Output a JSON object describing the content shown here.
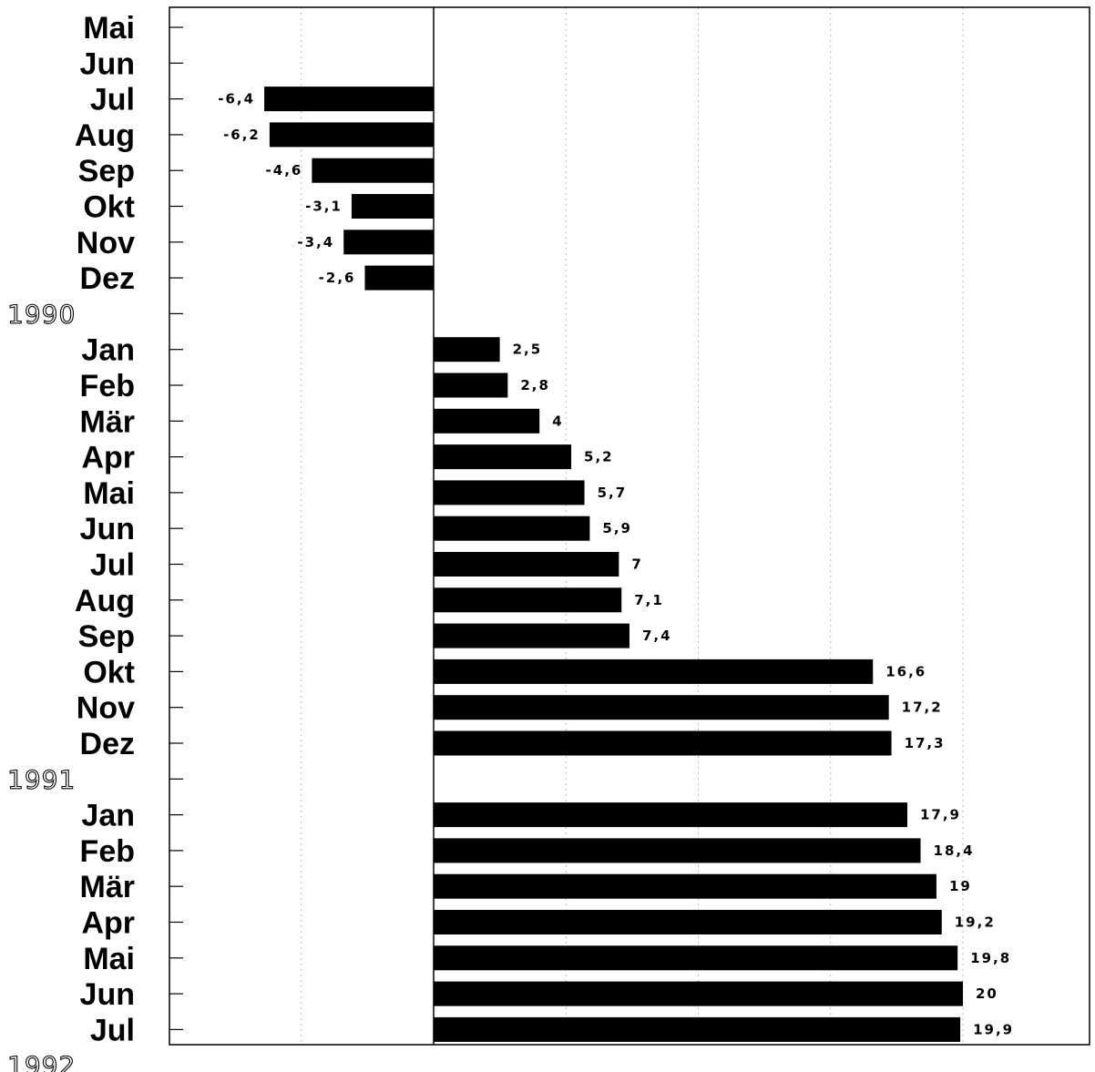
{
  "chart_data": {
    "type": "bar",
    "orientation": "horizontal",
    "rows": [
      {
        "kind": "category",
        "label": "Mai",
        "value": null,
        "value_label": ""
      },
      {
        "kind": "category",
        "label": "Jun",
        "value": null,
        "value_label": ""
      },
      {
        "kind": "category",
        "label": "Jul",
        "value": -6.4,
        "value_label": "-6,4"
      },
      {
        "kind": "category",
        "label": "Aug",
        "value": -6.2,
        "value_label": "-6,2"
      },
      {
        "kind": "category",
        "label": "Sep",
        "value": -4.6,
        "value_label": "-4,6"
      },
      {
        "kind": "category",
        "label": "Okt",
        "value": -3.1,
        "value_label": "-3,1"
      },
      {
        "kind": "category",
        "label": "Nov",
        "value": -3.4,
        "value_label": "-3,4"
      },
      {
        "kind": "category",
        "label": "Dez",
        "value": -2.6,
        "value_label": "-2,6"
      },
      {
        "kind": "year",
        "label": "1990"
      },
      {
        "kind": "category",
        "label": "Jan",
        "value": 2.5,
        "value_label": "2,5"
      },
      {
        "kind": "category",
        "label": "Feb",
        "value": 2.8,
        "value_label": "2,8"
      },
      {
        "kind": "category",
        "label": "Mär",
        "value": 4,
        "value_label": "4"
      },
      {
        "kind": "category",
        "label": "Apr",
        "value": 5.2,
        "value_label": "5,2"
      },
      {
        "kind": "category",
        "label": "Mai",
        "value": 5.7,
        "value_label": "5,7"
      },
      {
        "kind": "category",
        "label": "Jun",
        "value": 5.9,
        "value_label": "5,9"
      },
      {
        "kind": "category",
        "label": "Jul",
        "value": 7,
        "value_label": "7"
      },
      {
        "kind": "category",
        "label": "Aug",
        "value": 7.1,
        "value_label": "7,1"
      },
      {
        "kind": "category",
        "label": "Sep",
        "value": 7.4,
        "value_label": "7,4"
      },
      {
        "kind": "category",
        "label": "Okt",
        "value": 16.6,
        "value_label": "16,6"
      },
      {
        "kind": "category",
        "label": "Nov",
        "value": 17.2,
        "value_label": "17,2"
      },
      {
        "kind": "category",
        "label": "Dez",
        "value": 17.3,
        "value_label": "17,3"
      },
      {
        "kind": "year",
        "label": "1991"
      },
      {
        "kind": "category",
        "label": "Jan",
        "value": 17.9,
        "value_label": "17,9"
      },
      {
        "kind": "category",
        "label": "Feb",
        "value": 18.4,
        "value_label": "18,4"
      },
      {
        "kind": "category",
        "label": "Mär",
        "value": 19,
        "value_label": "19"
      },
      {
        "kind": "category",
        "label": "Apr",
        "value": 19.2,
        "value_label": "19,2"
      },
      {
        "kind": "category",
        "label": "Mai",
        "value": 19.8,
        "value_label": "19,8"
      },
      {
        "kind": "category",
        "label": "Jun",
        "value": 20,
        "value_label": "20"
      },
      {
        "kind": "category",
        "label": "Jul",
        "value": 19.9,
        "value_label": "19,9"
      },
      {
        "kind": "year",
        "label": "1992"
      }
    ],
    "xlim": [
      -10,
      25
    ],
    "x_gridlines": [
      -5,
      0,
      5,
      10,
      15,
      20
    ],
    "grid": true,
    "bar_color": "#000000",
    "title": "",
    "xlabel": "",
    "ylabel": ""
  }
}
